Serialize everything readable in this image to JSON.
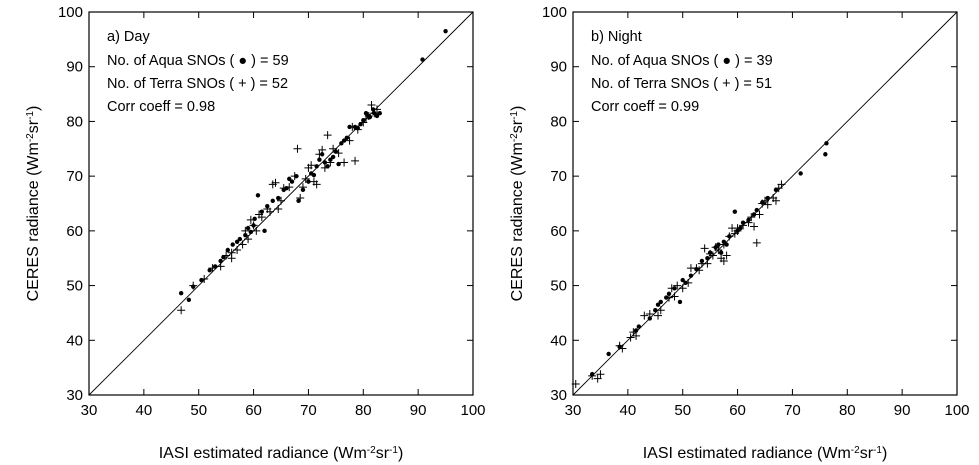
{
  "chart_data": [
    {
      "type": "scatter",
      "panel_label": "a) Day",
      "annotations": [
        "No. of Aqua SNOs ( ● ) = 59",
        "No. of Terra SNOs ( + ) = 52",
        "Corr coeff = 0.98"
      ],
      "xlabel": "IASI estimated radiance (Wm-2sr-1)",
      "ylabel": "CERES radiance (Wm-2sr-1)",
      "xlim": [
        30,
        100
      ],
      "ylim": [
        30,
        100
      ],
      "x_ticks": [
        30,
        40,
        50,
        60,
        70,
        80,
        90,
        100
      ],
      "y_ticks": [
        30,
        40,
        50,
        60,
        70,
        80,
        90,
        100
      ],
      "reference_line": "1:1",
      "grid": false,
      "series": [
        {
          "marker": "dot",
          "points": [
            [
              46.8,
              48.6
            ],
            [
              48.2,
              47.4
            ],
            [
              49,
              49.8
            ],
            [
              50.5,
              51
            ],
            [
              52,
              52.8
            ],
            [
              53,
              53.5
            ],
            [
              54.5,
              55.2
            ],
            [
              55.3,
              56.5
            ],
            [
              56.2,
              57.5
            ],
            [
              57,
              58
            ],
            [
              57.5,
              58.5
            ],
            [
              58.5,
              59.2
            ],
            [
              59.5,
              59.8
            ],
            [
              60,
              61
            ],
            [
              60.2,
              62.2
            ],
            [
              60.8,
              66.5
            ],
            [
              61.5,
              63.5
            ],
            [
              62,
              60
            ],
            [
              62.5,
              64.5
            ],
            [
              63.5,
              65.5
            ],
            [
              64.5,
              66
            ],
            [
              65.5,
              67.5
            ],
            [
              66,
              67.8
            ],
            [
              67,
              69
            ],
            [
              67.8,
              70
            ],
            [
              68.2,
              65.5
            ],
            [
              69,
              67.5
            ],
            [
              70,
              69
            ],
            [
              70.5,
              70.5
            ],
            [
              71,
              70.2
            ],
            [
              71.5,
              71.8
            ],
            [
              72,
              73
            ],
            [
              72.5,
              74
            ],
            [
              73,
              72.5
            ],
            [
              73.5,
              71.8
            ],
            [
              74.5,
              73.5
            ],
            [
              75,
              74.5
            ],
            [
              75.5,
              72.2
            ],
            [
              76,
              76
            ],
            [
              77,
              77
            ],
            [
              77.5,
              79
            ],
            [
              78.5,
              79
            ],
            [
              79,
              78.8
            ],
            [
              79.5,
              79.5
            ],
            [
              80,
              80.2
            ],
            [
              80.5,
              81.5
            ],
            [
              81,
              81
            ],
            [
              81.2,
              80.8
            ],
            [
              81.8,
              82.2
            ],
            [
              82,
              81.5
            ],
            [
              82.5,
              81
            ],
            [
              83,
              81.5
            ],
            [
              76.5,
              76.5
            ],
            [
              74,
              73
            ],
            [
              66.5,
              69.5
            ],
            [
              59,
              60.5
            ],
            [
              54,
              54.5
            ],
            [
              90.8,
              91.3
            ],
            [
              95,
              96.5
            ]
          ]
        },
        {
          "marker": "plus",
          "points": [
            [
              46.8,
              45.5
            ],
            [
              49,
              50
            ],
            [
              51,
              51.2
            ],
            [
              52.5,
              53.2
            ],
            [
              54,
              53.5
            ],
            [
              55,
              55.5
            ],
            [
              56,
              55
            ],
            [
              57,
              56.5
            ],
            [
              58,
              57.5
            ],
            [
              59,
              58.5
            ],
            [
              59.5,
              62
            ],
            [
              60,
              61
            ],
            [
              61,
              63
            ],
            [
              61.5,
              62.5
            ],
            [
              62.5,
              64
            ],
            [
              63,
              63.5
            ],
            [
              63.5,
              68.5
            ],
            [
              64,
              68.8
            ],
            [
              64.5,
              64
            ],
            [
              65,
              65.5
            ],
            [
              65.5,
              67.8
            ],
            [
              66.5,
              68
            ],
            [
              67.5,
              70
            ],
            [
              68,
              75
            ],
            [
              68.5,
              66
            ],
            [
              69,
              68
            ],
            [
              69.5,
              69.5
            ],
            [
              70,
              71.5
            ],
            [
              70.5,
              72
            ],
            [
              71,
              69
            ],
            [
              71.5,
              68.5
            ],
            [
              72,
              74
            ],
            [
              72.5,
              74.8
            ],
            [
              73,
              71.5
            ],
            [
              73.5,
              77.5
            ],
            [
              74,
              72.5
            ],
            [
              74.5,
              75
            ],
            [
              75.5,
              74.2
            ],
            [
              76.5,
              72.5
            ],
            [
              77.5,
              76.5
            ],
            [
              78,
              79
            ],
            [
              78.5,
              72.8
            ],
            [
              79,
              78.5
            ],
            [
              80,
              79.8
            ],
            [
              80.5,
              80.5
            ],
            [
              81,
              81
            ],
            [
              81.5,
              83
            ],
            [
              82,
              81.5
            ],
            [
              82.5,
              82.2
            ],
            [
              58.5,
              60
            ],
            [
              56,
              56
            ],
            [
              60.5,
              60
            ]
          ]
        }
      ]
    },
    {
      "type": "scatter",
      "panel_label": "b) Night",
      "annotations": [
        "No. of Aqua SNOs ( ● ) = 39",
        "No. of Terra SNOs ( + ) = 51",
        "Corr coeff = 0.99"
      ],
      "xlabel": "IASI estimated radiance (Wm-2sr-1)",
      "ylabel": "CERES radiance (Wm-2sr-1)",
      "xlim": [
        30,
        100
      ],
      "ylim": [
        30,
        100
      ],
      "x_ticks": [
        30,
        40,
        50,
        60,
        70,
        80,
        90,
        100
      ],
      "y_ticks": [
        30,
        40,
        50,
        60,
        70,
        80,
        90,
        100
      ],
      "reference_line": "1:1",
      "grid": false,
      "series": [
        {
          "marker": "dot",
          "points": [
            [
              33.5,
              33.8
            ],
            [
              36.5,
              37.5
            ],
            [
              38.5,
              38.8
            ],
            [
              41.5,
              41.8
            ],
            [
              42,
              42.5
            ],
            [
              44,
              44
            ],
            [
              45,
              45.5
            ],
            [
              45.5,
              46.5
            ],
            [
              46,
              47
            ],
            [
              47,
              47.8
            ],
            [
              47.5,
              48.5
            ],
            [
              48.5,
              49.5
            ],
            [
              49.5,
              47
            ],
            [
              50,
              51
            ],
            [
              50.5,
              50.5
            ],
            [
              51.5,
              51.8
            ],
            [
              52.5,
              53
            ],
            [
              53.5,
              54.5
            ],
            [
              54.5,
              55
            ],
            [
              55,
              56
            ],
            [
              56,
              57
            ],
            [
              56.5,
              57.5
            ],
            [
              57,
              56
            ],
            [
              57.5,
              58
            ],
            [
              58,
              57.5
            ],
            [
              58.5,
              59
            ],
            [
              59.5,
              63.5
            ],
            [
              60,
              60
            ],
            [
              60.5,
              60.5
            ],
            [
              61,
              61.5
            ],
            [
              62,
              62
            ],
            [
              63,
              63
            ],
            [
              63.5,
              63.8
            ],
            [
              64.5,
              65.2
            ],
            [
              65.5,
              66
            ],
            [
              67,
              67.5
            ],
            [
              71.5,
              70.5
            ],
            [
              76,
              74
            ],
            [
              76.2,
              76
            ]
          ]
        },
        {
          "marker": "plus",
          "points": [
            [
              30.5,
              32
            ],
            [
              33.5,
              33.5
            ],
            [
              34.5,
              33
            ],
            [
              35,
              33.8
            ],
            [
              38.5,
              39
            ],
            [
              39,
              38.5
            ],
            [
              40.5,
              40.5
            ],
            [
              41.5,
              40.8
            ],
            [
              43,
              44.5
            ],
            [
              44,
              44.8
            ],
            [
              45.5,
              44.5
            ],
            [
              46,
              45.5
            ],
            [
              47.5,
              47.8
            ],
            [
              48,
              49.5
            ],
            [
              49,
              50
            ],
            [
              50,
              49.5
            ],
            [
              51,
              50.5
            ],
            [
              52.5,
              53.2
            ],
            [
              53,
              52.8
            ],
            [
              54,
              56.8
            ],
            [
              54.5,
              54
            ],
            [
              55.5,
              55.5
            ],
            [
              56,
              57
            ],
            [
              56.5,
              56.5
            ],
            [
              57,
              55
            ],
            [
              57.5,
              57.5
            ],
            [
              58,
              55.5
            ],
            [
              58.5,
              59
            ],
            [
              59,
              60.5
            ],
            [
              59.5,
              59.5
            ],
            [
              60,
              60
            ],
            [
              61,
              61
            ],
            [
              62,
              61.5
            ],
            [
              62.5,
              62.5
            ],
            [
              63,
              60.8
            ],
            [
              63.5,
              57.8
            ],
            [
              64,
              63
            ],
            [
              65,
              65.5
            ],
            [
              65.5,
              64.8
            ],
            [
              66.5,
              66
            ],
            [
              67,
              65.5
            ],
            [
              67.5,
              67.8
            ],
            [
              68,
              68.5
            ],
            [
              51.5,
              53.2
            ],
            [
              53.5,
              54
            ],
            [
              55,
              55.8
            ],
            [
              57.5,
              54.5
            ],
            [
              60,
              60.5
            ],
            [
              64.5,
              65
            ],
            [
              41,
              41.5
            ],
            [
              48.5,
              48
            ]
          ]
        }
      ]
    }
  ]
}
